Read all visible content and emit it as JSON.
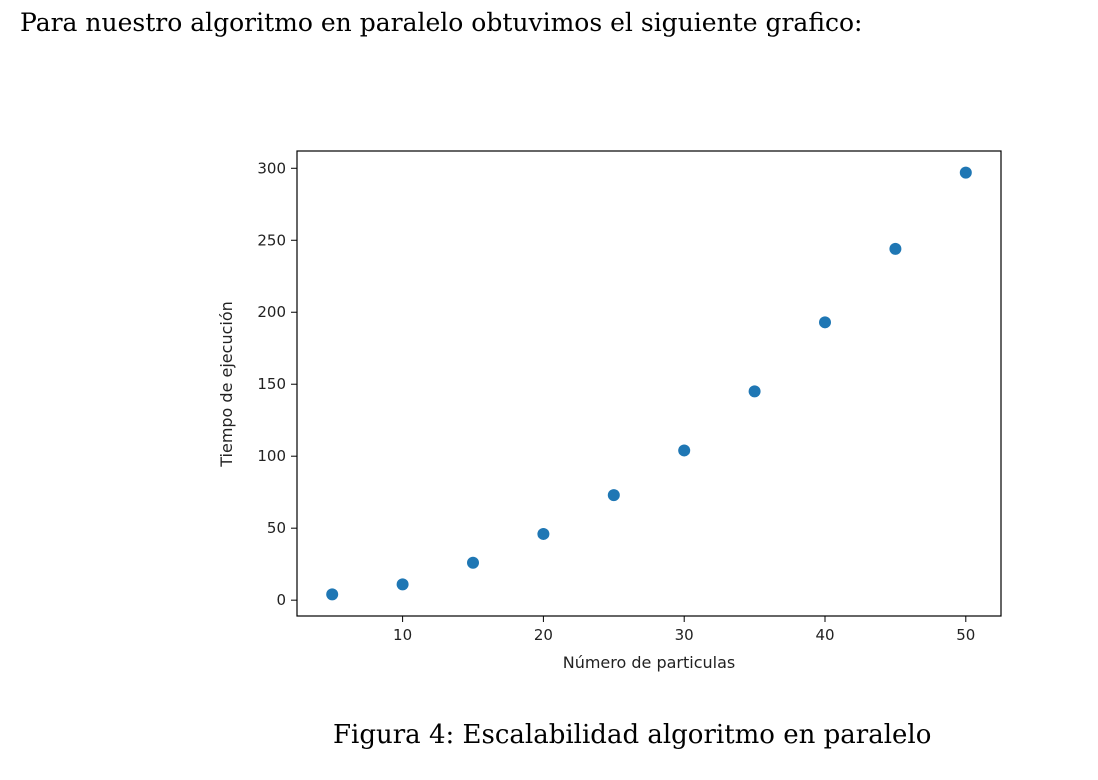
{
  "intro_text": "Para nuestro algoritmo en paralelo obtuvimos el siguiente grafico:",
  "figure_caption": "Figura 4: Escalabilidad algoritmo en paralelo",
  "chart_data": {
    "type": "scatter",
    "title": "",
    "xlabel": "Número de particulas",
    "ylabel": "Tiempo de ejecución",
    "xlim": [
      2.5,
      52.5
    ],
    "ylim": [
      -11,
      312
    ],
    "xticks": [
      10,
      20,
      30,
      40,
      50
    ],
    "yticks": [
      0,
      50,
      100,
      150,
      200,
      250,
      300
    ],
    "grid": false,
    "marker_color": "#1f77b4",
    "series": [
      {
        "x": [
          5,
          10,
          15,
          20,
          25,
          30,
          35,
          40,
          45,
          50
        ],
        "y": [
          4,
          11,
          26,
          46,
          73,
          104,
          145,
          193,
          244,
          297
        ]
      }
    ]
  }
}
